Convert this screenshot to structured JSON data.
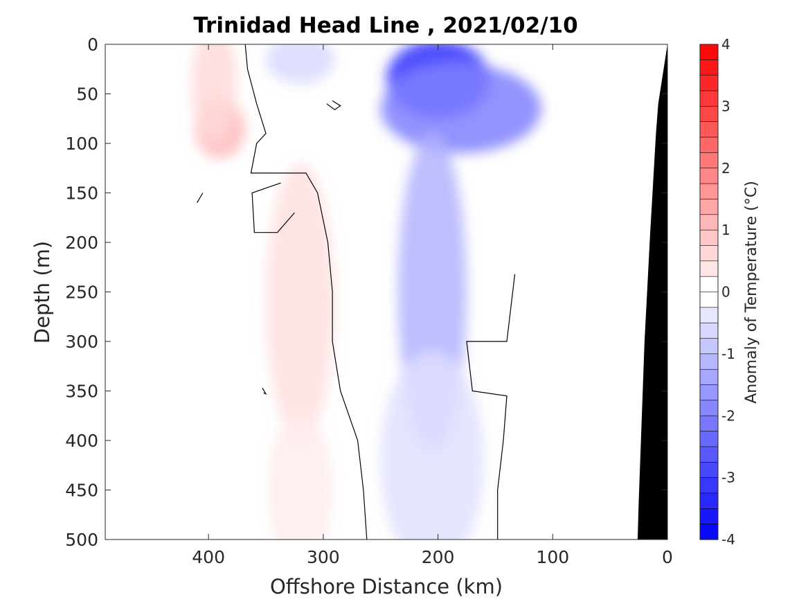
{
  "chart_data": {
    "type": "heatmap",
    "title": "Trinidad Head Line , 2021/02/10",
    "xlabel": "Offshore Distance (km)",
    "ylabel": "Depth (m)",
    "xlim": [
      490,
      0
    ],
    "ylim": [
      0,
      500
    ],
    "x_reversed": true,
    "y_reversed": true,
    "xticks": [
      400,
      300,
      200,
      100,
      0
    ],
    "xtick_labels": [
      "400",
      "300",
      "200",
      "100",
      "0"
    ],
    "yticks": [
      0,
      50,
      100,
      150,
      200,
      250,
      300,
      350,
      400,
      450,
      500
    ],
    "ytick_labels": [
      "0",
      "50",
      "100",
      "150",
      "200",
      "250",
      "300",
      "350",
      "400",
      "450",
      "500"
    ],
    "colorbar": {
      "label": "Anomaly of Temperature (°C)",
      "range": [
        -4,
        4
      ],
      "step": 0.25,
      "ticks": [
        4,
        3,
        2,
        1,
        0,
        -1,
        -2,
        -3,
        -4
      ],
      "tick_labels": [
        "4",
        "3",
        "2",
        "1",
        "0",
        "-1",
        "-2",
        "-3",
        "-4"
      ],
      "cold_color": "#0000ff",
      "warm_color": "#ff0000",
      "neutral_color": "#ffffff"
    },
    "data_extent_km": [
      120,
      410
    ],
    "bathymetry": {
      "color": "#000000",
      "boundary": [
        [
          0,
          0
        ],
        [
          8,
          60
        ],
        [
          10,
          90
        ],
        [
          15,
          190
        ],
        [
          20,
          300
        ],
        [
          25,
          460
        ],
        [
          26,
          500
        ]
      ]
    },
    "features": [
      {
        "name": "warm-core-upper",
        "distance_km": 390,
        "depth_m": 85,
        "anomaly": 1.1
      },
      {
        "name": "warm-band-upper",
        "distance_km": 395,
        "depth_m": 40,
        "anomaly": 0.6
      },
      {
        "name": "warm-band-subsurface",
        "distance_km": 320,
        "depth_m": 260,
        "anomaly": 0.5
      },
      {
        "name": "warm-band-deep",
        "distance_km": 320,
        "depth_m": 450,
        "anomaly": 0.3
      },
      {
        "name": "cold-core-surface",
        "distance_km": 200,
        "depth_m": 35,
        "anomaly": -3.2
      },
      {
        "name": "cold-core-upper",
        "distance_km": 180,
        "depth_m": 65,
        "anomaly": -2.0
      },
      {
        "name": "cold-tongue",
        "distance_km": 205,
        "depth_m": 250,
        "anomaly": -1.2
      },
      {
        "name": "cold-tongue-deep",
        "distance_km": 205,
        "depth_m": 420,
        "anomaly": -0.5
      },
      {
        "name": "cold-patch-surface",
        "distance_km": 320,
        "depth_m": 15,
        "anomaly": -0.6
      }
    ],
    "zero_contours": [
      [
        [
          368,
          0
        ],
        [
          366,
          25
        ],
        [
          358,
          60
        ],
        [
          350,
          90
        ],
        [
          358,
          100
        ],
        [
          363,
          130
        ],
        [
          315,
          130
        ],
        [
          305,
          150
        ],
        [
          296,
          200
        ],
        [
          292,
          250
        ],
        [
          292,
          300
        ],
        [
          285,
          350
        ],
        [
          270,
          400
        ],
        [
          265,
          450
        ],
        [
          262,
          500
        ]
      ],
      [
        [
          133,
          232
        ],
        [
          140,
          300
        ],
        [
          175,
          300
        ],
        [
          170,
          350
        ],
        [
          140,
          355
        ],
        [
          143,
          400
        ],
        [
          148,
          450
        ],
        [
          148,
          500
        ]
      ],
      [
        [
          405,
          150
        ],
        [
          410,
          160
        ]
      ],
      [
        [
          337,
          140
        ],
        [
          362,
          150
        ],
        [
          360,
          190
        ],
        [
          340,
          190
        ],
        [
          325,
          170
        ]
      ],
      [
        [
          292,
          57
        ],
        [
          285,
          62
        ],
        [
          290,
          66
        ],
        [
          297,
          60
        ]
      ],
      [
        [
          353,
          347
        ],
        [
          350,
          353
        ],
        [
          352,
          352
        ]
      ]
    ]
  }
}
